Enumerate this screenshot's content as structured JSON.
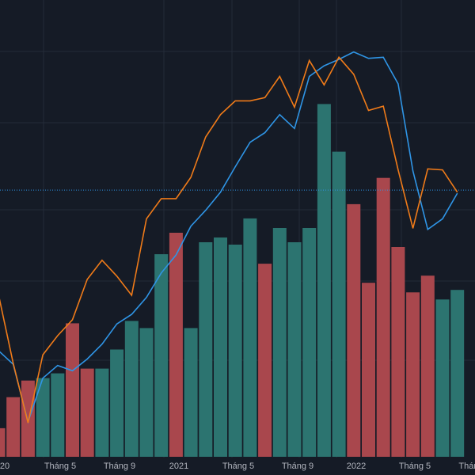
{
  "chart_data": {
    "type": "line",
    "subtype": "line-with-volume-bars",
    "x_axis": {
      "tick_labels": [
        "20",
        "Tháng 5",
        "Tháng 9",
        "2021",
        "Tháng 5",
        "Tháng 9",
        "2022",
        "Tháng 5",
        "Tháng"
      ]
    },
    "grid": true,
    "colors": {
      "background": "#151b26",
      "grid": "#232b38",
      "axis_text": "#b2b5be",
      "line_blue": "#2f95e6",
      "line_orange": "#f07b19",
      "reference_line": "#2f95e6",
      "volume_up": "#2c7470",
      "volume_down": "#a9474d"
    },
    "x": [
      0,
      1,
      2,
      3,
      4,
      5,
      6,
      7,
      8,
      9,
      10,
      11,
      12,
      13,
      14,
      15,
      16,
      17,
      18,
      19,
      20,
      21,
      22,
      23,
      24,
      25,
      26,
      27,
      28,
      29,
      30,
      31
    ],
    "series": [
      {
        "key": "blue",
        "values": [
          70,
          57,
          3,
          44,
          56,
          51,
          62,
          76,
          95,
          104,
          120,
          143,
          160,
          187,
          202,
          219,
          243,
          266,
          275,
          292,
          279,
          328,
          338,
          344,
          351,
          345,
          346,
          321,
          239,
          184,
          194,
          218
        ]
      },
      {
        "key": "orange",
        "values": [
          123,
          58,
          2,
          66,
          84,
          99,
          137,
          155,
          140,
          122,
          194,
          213,
          213,
          233,
          271,
          292,
          305,
          305,
          308,
          328,
          299,
          343,
          320,
          346,
          330,
          296,
          300,
          240,
          185,
          241,
          240,
          219
        ]
      }
    ],
    "reference_line_value": 221,
    "volume": {
      "values": [
        1.2,
        2.5,
        3.2,
        3.3,
        3.5,
        5.6,
        3.7,
        3.7,
        4.5,
        5.7,
        5.4,
        8.5,
        9.4,
        5.4,
        9.0,
        9.2,
        8.9,
        10.0,
        8.1,
        9.6,
        9.0,
        9.6,
        14.8,
        12.8,
        10.6,
        7.3,
        11.7,
        8.8,
        6.9,
        7.6,
        6.6,
        7.0
      ],
      "direction": [
        "down",
        "down",
        "down",
        "up",
        "up",
        "down",
        "down",
        "up",
        "up",
        "up",
        "up",
        "up",
        "down",
        "up",
        "up",
        "up",
        "up",
        "up",
        "down",
        "up",
        "up",
        "up",
        "up",
        "up",
        "down",
        "down",
        "down",
        "down",
        "down",
        "down",
        "up",
        "up"
      ]
    },
    "ylim": [
      -30,
      385
    ],
    "volume_max": 18.5
  }
}
